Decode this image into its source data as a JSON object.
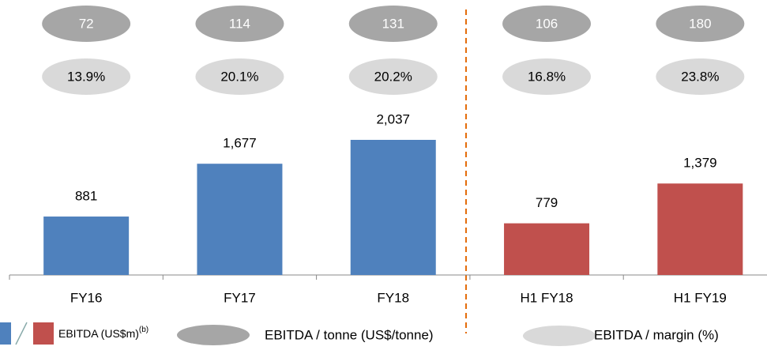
{
  "chart_data": {
    "type": "bar",
    "categories": [
      "FY16",
      "FY17",
      "FY18",
      "H1 FY18",
      "H1 FY19"
    ],
    "values": [
      881,
      1677,
      2037,
      779,
      1379
    ],
    "value_labels": [
      "881",
      "1,677",
      "2,037",
      "779",
      "1,379"
    ],
    "colors": [
      "#4f81bd",
      "#4f81bd",
      "#4f81bd",
      "#c0504d",
      "#c0504d"
    ],
    "per_tonne": {
      "name": "EBITDA / tonne (US$/tonne)",
      "color": "#a6a6a6",
      "values": [
        72,
        114,
        131,
        106,
        180
      ]
    },
    "margin": {
      "name": "EBITDA / margin (%)",
      "color": "#d9d9d9",
      "values": [
        13.9,
        20.1,
        20.2,
        16.8,
        23.8
      ],
      "value_labels": [
        "13.9%",
        "20.1%",
        "20.2%",
        "16.8%",
        "23.8%"
      ]
    },
    "bar_legend": {
      "name": "EBITDA (US$m)",
      "note": "(b)"
    }
  }
}
